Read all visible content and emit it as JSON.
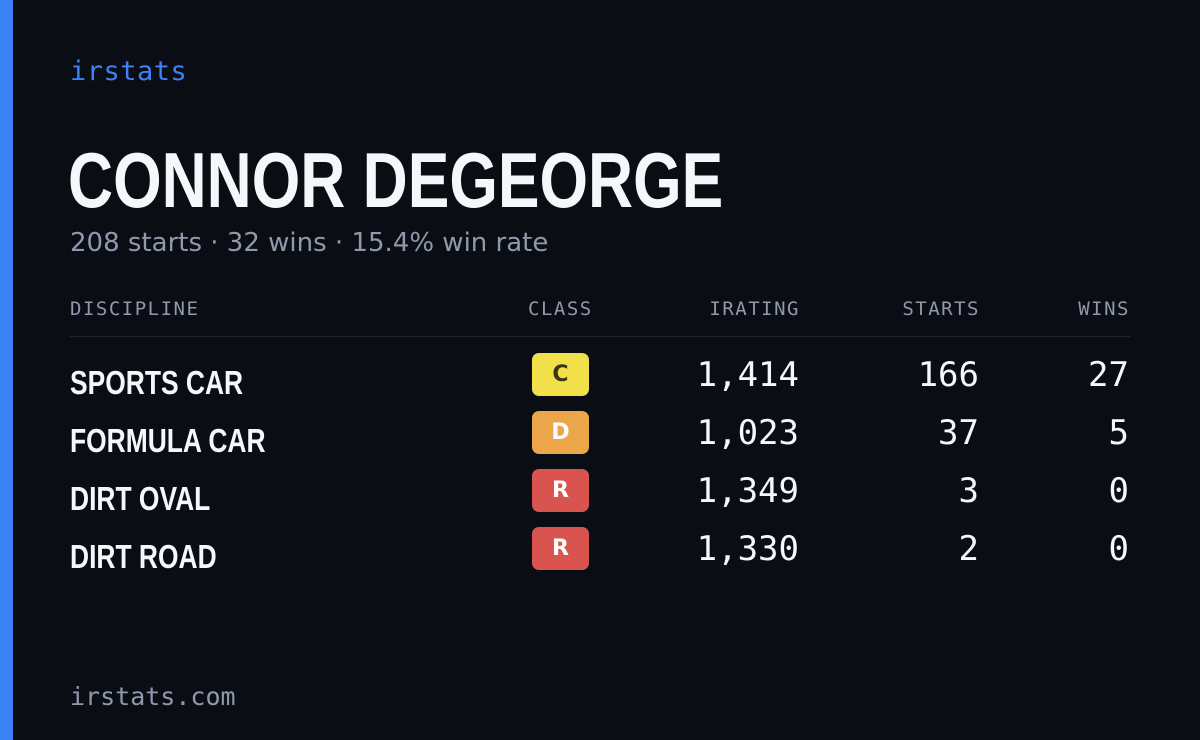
{
  "brand": "irstats",
  "driver": {
    "name": "CONNOR DEGEORGE",
    "summary": "208 starts · 32 wins · 15.4% win rate"
  },
  "table": {
    "headers": {
      "discipline": "DISCIPLINE",
      "class": "CLASS",
      "irating": "IRATING",
      "starts": "STARTS",
      "wins": "WINS"
    },
    "rows": [
      {
        "discipline": "SPORTS CAR",
        "class": "C",
        "class_color": "#f1e04a",
        "class_text_color": "#3a3410",
        "irating": "1,414",
        "starts": "166",
        "wins": "27"
      },
      {
        "discipline": "FORMULA CAR",
        "class": "D",
        "class_color": "#eca64a",
        "class_text_color": "#ffffff",
        "irating": "1,023",
        "starts": "37",
        "wins": "5"
      },
      {
        "discipline": "DIRT OVAL",
        "class": "R",
        "class_color": "#d9534f",
        "class_text_color": "#ffffff",
        "irating": "1,349",
        "starts": "3",
        "wins": "0"
      },
      {
        "discipline": "DIRT ROAD",
        "class": "R",
        "class_color": "#d9534f",
        "class_text_color": "#ffffff",
        "irating": "1,330",
        "starts": "2",
        "wins": "0"
      }
    ]
  },
  "footer": {
    "domain": "irstats.com"
  },
  "colors": {
    "accent": "#3b82f6",
    "background": "#0b0d14",
    "muted_text": "#8f99ac"
  }
}
